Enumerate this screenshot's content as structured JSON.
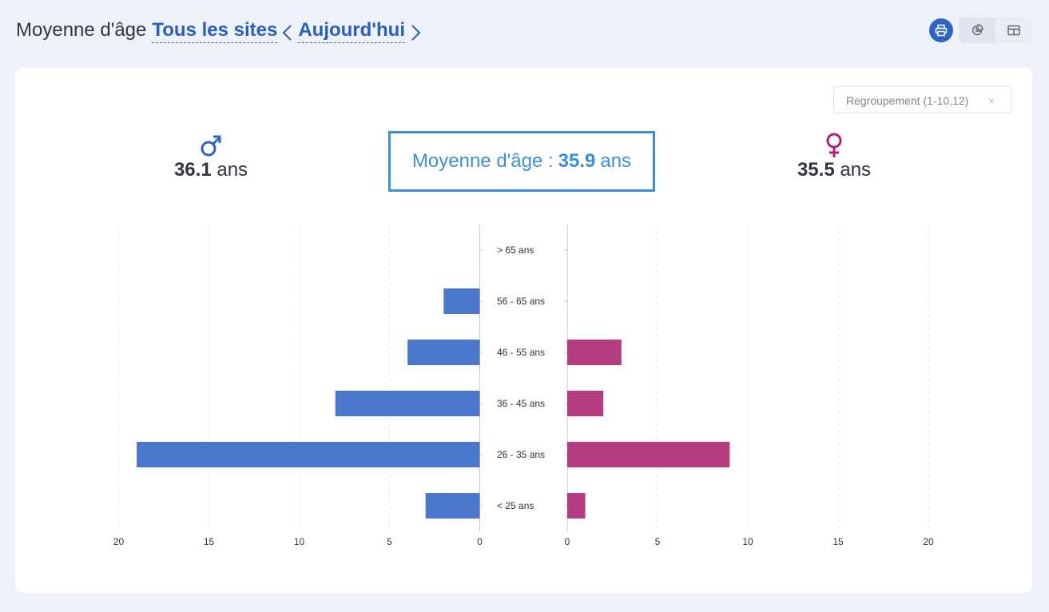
{
  "header": {
    "title": "Moyenne d'âge",
    "site_link": "Tous les sites",
    "period_link": "Aujourd'hui"
  },
  "toolbar": {
    "print_icon": "printer-icon",
    "chart_icon": "pie-chart-icon",
    "table_icon": "table-icon"
  },
  "filter": {
    "grouping_value": "Regroupement (1-10,12)",
    "clear_symbol": "×"
  },
  "stats": {
    "male_symbol": "♂",
    "male_value": "36.1",
    "female_symbol": "♀",
    "female_value": "35.5",
    "unit": "ans",
    "average_label": "Moyenne d'âge :",
    "average_value": "35.9",
    "average_unit": "ans"
  },
  "colors": {
    "male": "#4a76cc",
    "female": "#b63d82",
    "accent": "#3d8ed8",
    "link": "#2a5fb8"
  },
  "chart_data": {
    "type": "bar",
    "orientation": "horizontal-pyramid",
    "categories": [
      "> 65 ans",
      "56 - 65 ans",
      "46 - 55 ans",
      "36 - 45 ans",
      "26 - 35 ans",
      "< 25 ans"
    ],
    "series": [
      {
        "name": "male",
        "values": [
          0,
          2,
          4,
          8,
          19,
          3
        ]
      },
      {
        "name": "female",
        "values": [
          0,
          0,
          3,
          2,
          9,
          1
        ]
      }
    ],
    "xlim": [
      0,
      20
    ],
    "xticks": [
      0,
      5,
      10,
      15,
      20
    ],
    "grid": true
  }
}
